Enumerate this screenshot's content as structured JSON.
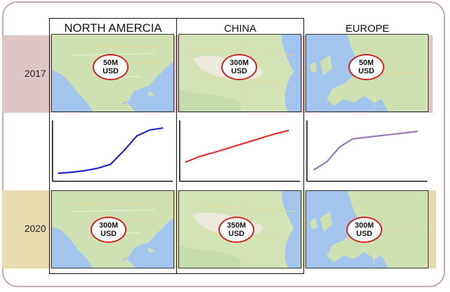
{
  "years": [
    "2017",
    "2020"
  ],
  "regions": [
    {
      "name": "NORTH AMERCIA",
      "values": [
        {
          "amount": "50M",
          "unit": "USD"
        },
        {
          "amount": "300M",
          "unit": "USD"
        }
      ]
    },
    {
      "name": "CHINA",
      "values": [
        {
          "amount": "300M",
          "unit": "USD"
        },
        {
          "amount": "350M",
          "unit": "USD"
        }
      ]
    },
    {
      "name": "EUROPE",
      "values": [
        {
          "amount": "50M",
          "unit": "USD"
        },
        {
          "amount": "300M",
          "unit": "USD"
        }
      ]
    }
  ],
  "colors": {
    "band_2017": "#dec6c7",
    "band_2020": "#e6dcb0",
    "north_america_line": "#2222cc",
    "china_line": "#e82c2c",
    "europe_line": "#9479b4",
    "badge_border": "#d0201f",
    "ocean": "#a3c4ec",
    "land": "#cfe0b2"
  },
  "chart_data": [
    {
      "type": "line",
      "series": [
        {
          "values": [
            0.05,
            0.07,
            0.1,
            0.15,
            0.23,
            0.5,
            0.8,
            0.92,
            0.96
          ]
        }
      ],
      "ylim": [
        0,
        1
      ]
    },
    {
      "type": "line",
      "series": [
        {
          "values": [
            0.3,
            0.43,
            0.52,
            0.62,
            0.72,
            0.82,
            0.92,
            1.0
          ]
        }
      ],
      "ylim": [
        0,
        1.1
      ]
    },
    {
      "type": "line",
      "series": [
        {
          "values": [
            0.12,
            0.28,
            0.58,
            0.74,
            0.77,
            0.8,
            0.83,
            0.86,
            0.89
          ]
        }
      ],
      "ylim": [
        0,
        1
      ]
    }
  ]
}
